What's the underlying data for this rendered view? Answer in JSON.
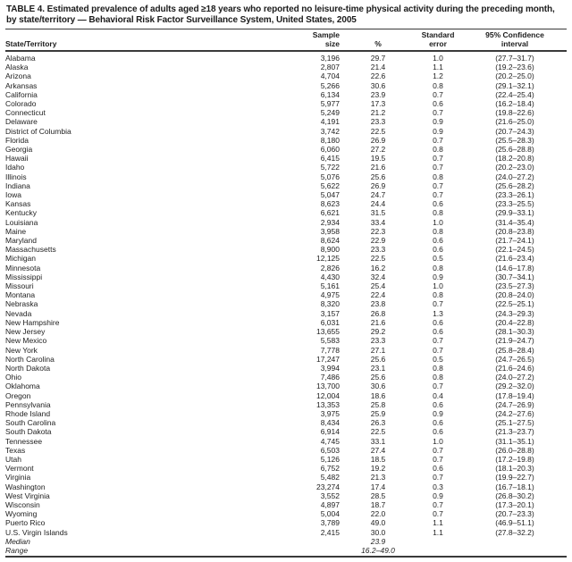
{
  "title": "TABLE 4. Estimated prevalence of adults aged ≥18 years who reported no leisure-time physical activity during the preceding month, by state/territory — Behavioral Risk Factor Surveillance System, United States, 2005",
  "table": {
    "headers": {
      "state": "State/Territory",
      "sample": "Sample\nsize",
      "pct": "%",
      "se": "Standard\nerror",
      "ci": "95% Confidence\ninterval"
    },
    "rows": [
      {
        "name": "Alabama",
        "sample": "3,196",
        "pct": "29.7",
        "se": "1.0",
        "ci": "(27.7–31.7)"
      },
      {
        "name": "Alaska",
        "sample": "2,807",
        "pct": "21.4",
        "se": "1.1",
        "ci": "(19.2–23.6)"
      },
      {
        "name": "Arizona",
        "sample": "4,704",
        "pct": "22.6",
        "se": "1.2",
        "ci": "(20.2–25.0)"
      },
      {
        "name": "Arkansas",
        "sample": "5,266",
        "pct": "30.6",
        "se": "0.8",
        "ci": "(29.1–32.1)"
      },
      {
        "name": "California",
        "sample": "6,134",
        "pct": "23.9",
        "se": "0.7",
        "ci": "(22.4–25.4)"
      },
      {
        "name": "Colorado",
        "sample": "5,977",
        "pct": "17.3",
        "se": "0.6",
        "ci": "(16.2–18.4)"
      },
      {
        "name": "Connecticut",
        "sample": "5,249",
        "pct": "21.2",
        "se": "0.7",
        "ci": "(19.8–22.6)"
      },
      {
        "name": "Delaware",
        "sample": "4,191",
        "pct": "23.3",
        "se": "0.9",
        "ci": "(21.6–25.0)"
      },
      {
        "name": "District of Columbia",
        "sample": "3,742",
        "pct": "22.5",
        "se": "0.9",
        "ci": "(20.7–24.3)"
      },
      {
        "name": "Florida",
        "sample": "8,180",
        "pct": "26.9",
        "se": "0.7",
        "ci": "(25.5–28.3)"
      },
      {
        "name": "Georgia",
        "sample": "6,060",
        "pct": "27.2",
        "se": "0.8",
        "ci": "(25.6–28.8)"
      },
      {
        "name": "Hawaii",
        "sample": "6,415",
        "pct": "19.5",
        "se": "0.7",
        "ci": "(18.2–20.8)"
      },
      {
        "name": "Idaho",
        "sample": "5,722",
        "pct": "21.6",
        "se": "0.7",
        "ci": "(20.2–23.0)"
      },
      {
        "name": "Illinois",
        "sample": "5,076",
        "pct": "25.6",
        "se": "0.8",
        "ci": "(24.0–27.2)"
      },
      {
        "name": "Indiana",
        "sample": "5,622",
        "pct": "26.9",
        "se": "0.7",
        "ci": "(25.6–28.2)"
      },
      {
        "name": "Iowa",
        "sample": "5,047",
        "pct": "24.7",
        "se": "0.7",
        "ci": "(23.3–26.1)"
      },
      {
        "name": "Kansas",
        "sample": "8,623",
        "pct": "24.4",
        "se": "0.6",
        "ci": "(23.3–25.5)"
      },
      {
        "name": "Kentucky",
        "sample": "6,621",
        "pct": "31.5",
        "se": "0.8",
        "ci": "(29.9–33.1)"
      },
      {
        "name": "Louisiana",
        "sample": "2,934",
        "pct": "33.4",
        "se": "1.0",
        "ci": "(31.4–35.4)"
      },
      {
        "name": "Maine",
        "sample": "3,958",
        "pct": "22.3",
        "se": "0.8",
        "ci": "(20.8–23.8)"
      },
      {
        "name": "Maryland",
        "sample": "8,624",
        "pct": "22.9",
        "se": "0.6",
        "ci": "(21.7–24.1)"
      },
      {
        "name": "Massachusetts",
        "sample": "8,900",
        "pct": "23.3",
        "se": "0.6",
        "ci": "(22.1–24.5)"
      },
      {
        "name": "Michigan",
        "sample": "12,125",
        "pct": "22.5",
        "se": "0.5",
        "ci": "(21.6–23.4)"
      },
      {
        "name": "Minnesota",
        "sample": "2,826",
        "pct": "16.2",
        "se": "0.8",
        "ci": "(14.6–17.8)"
      },
      {
        "name": "Mississippi",
        "sample": "4,430",
        "pct": "32.4",
        "se": "0.9",
        "ci": "(30.7–34.1)"
      },
      {
        "name": "Missouri",
        "sample": "5,161",
        "pct": "25.4",
        "se": "1.0",
        "ci": "(23.5–27.3)"
      },
      {
        "name": "Montana",
        "sample": "4,975",
        "pct": "22.4",
        "se": "0.8",
        "ci": "(20.8–24.0)"
      },
      {
        "name": "Nebraska",
        "sample": "8,320",
        "pct": "23.8",
        "se": "0.7",
        "ci": "(22.5–25.1)"
      },
      {
        "name": "Nevada",
        "sample": "3,157",
        "pct": "26.8",
        "se": "1.3",
        "ci": "(24.3–29.3)"
      },
      {
        "name": "New Hampshire",
        "sample": "6,031",
        "pct": "21.6",
        "se": "0.6",
        "ci": "(20.4–22.8)"
      },
      {
        "name": "New Jersey",
        "sample": "13,655",
        "pct": "29.2",
        "se": "0.6",
        "ci": "(28.1–30.3)"
      },
      {
        "name": "New Mexico",
        "sample": "5,583",
        "pct": "23.3",
        "se": "0.7",
        "ci": "(21.9–24.7)"
      },
      {
        "name": "New York",
        "sample": "7,778",
        "pct": "27.1",
        "se": "0.7",
        "ci": "(25.8–28.4)"
      },
      {
        "name": "North Carolina",
        "sample": "17,247",
        "pct": "25.6",
        "se": "0.5",
        "ci": "(24.7–26.5)"
      },
      {
        "name": "North Dakota",
        "sample": "3,994",
        "pct": "23.1",
        "se": "0.8",
        "ci": "(21.6–24.6)"
      },
      {
        "name": "Ohio",
        "sample": "7,486",
        "pct": "25.6",
        "se": "0.8",
        "ci": "(24.0–27.2)"
      },
      {
        "name": "Oklahoma",
        "sample": "13,700",
        "pct": "30.6",
        "se": "0.7",
        "ci": "(29.2–32.0)"
      },
      {
        "name": "Oregon",
        "sample": "12,004",
        "pct": "18.6",
        "se": "0.4",
        "ci": "(17.8–19.4)"
      },
      {
        "name": "Pennsylvania",
        "sample": "13,353",
        "pct": "25.8",
        "se": "0.6",
        "ci": "(24.7–26.9)"
      },
      {
        "name": "Rhode Island",
        "sample": "3,975",
        "pct": "25.9",
        "se": "0.9",
        "ci": "(24.2–27.6)"
      },
      {
        "name": "South Carolina",
        "sample": "8,434",
        "pct": "26.3",
        "se": "0.6",
        "ci": "(25.1–27.5)"
      },
      {
        "name": "South Dakota",
        "sample": "6,914",
        "pct": "22.5",
        "se": "0.6",
        "ci": "(21.3–23.7)"
      },
      {
        "name": "Tennessee",
        "sample": "4,745",
        "pct": "33.1",
        "se": "1.0",
        "ci": "(31.1–35.1)"
      },
      {
        "name": "Texas",
        "sample": "6,503",
        "pct": "27.4",
        "se": "0.7",
        "ci": "(26.0–28.8)"
      },
      {
        "name": "Utah",
        "sample": "5,126",
        "pct": "18.5",
        "se": "0.7",
        "ci": "(17.2–19.8)"
      },
      {
        "name": "Vermont",
        "sample": "6,752",
        "pct": "19.2",
        "se": "0.6",
        "ci": "(18.1–20.3)"
      },
      {
        "name": "Virginia",
        "sample": "5,482",
        "pct": "21.3",
        "se": "0.7",
        "ci": "(19.9–22.7)"
      },
      {
        "name": "Washington",
        "sample": "23,274",
        "pct": "17.4",
        "se": "0.3",
        "ci": "(16.7–18.1)"
      },
      {
        "name": "West Virginia",
        "sample": "3,552",
        "pct": "28.5",
        "se": "0.9",
        "ci": "(26.8–30.2)"
      },
      {
        "name": "Wisconsin",
        "sample": "4,897",
        "pct": "18.7",
        "se": "0.7",
        "ci": "(17.3–20.1)"
      },
      {
        "name": "Wyoming",
        "sample": "5,004",
        "pct": "22.0",
        "se": "0.7",
        "ci": "(20.7–23.3)"
      },
      {
        "name": "Puerto Rico",
        "sample": "3,789",
        "pct": "49.0",
        "se": "1.1",
        "ci": "(46.9–51.1)"
      },
      {
        "name": "U.S. Virgin Islands",
        "sample": "2,415",
        "pct": "30.0",
        "se": "1.1",
        "ci": "(27.8–32.2)"
      }
    ],
    "median": {
      "label": "Median",
      "value": "23.9"
    },
    "range": {
      "label": "Range",
      "value": "16.2–49.0"
    }
  },
  "colors": {
    "text": "#1d1d1d",
    "rule": "#3a3a3a",
    "background": "#ffffff"
  }
}
